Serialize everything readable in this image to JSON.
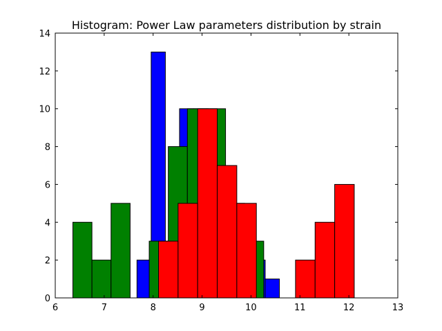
{
  "chart_data": {
    "type": "bar",
    "title": "Histogram: Power Law parameters distribution by strain",
    "xlabel": "",
    "ylabel": "",
    "xlim": [
      6,
      13
    ],
    "ylim": [
      0,
      14
    ],
    "x_ticks": [
      6,
      7,
      8,
      9,
      10,
      11,
      12,
      13
    ],
    "y_ticks": [
      0,
      2,
      4,
      6,
      8,
      10,
      12,
      14
    ],
    "grid": false,
    "legend": "none",
    "series": [
      {
        "color": "#0000ff",
        "bin_edges": [
          7.67,
          7.96,
          8.25,
          8.54,
          8.83,
          9.13,
          9.42,
          9.71,
          10.0,
          10.29,
          10.58
        ],
        "counts": [
          2,
          13,
          3,
          10,
          10,
          7,
          5,
          4,
          2,
          1
        ]
      },
      {
        "color": "#008000",
        "bin_edges": [
          6.36,
          6.75,
          7.14,
          7.53,
          7.92,
          8.31,
          8.7,
          9.09,
          9.48,
          9.87,
          10.26
        ],
        "counts": [
          4,
          2,
          5,
          0,
          3,
          8,
          10,
          10,
          5,
          3
        ]
      },
      {
        "color": "#ff0000",
        "bin_edges": [
          8.11,
          8.51,
          8.91,
          9.31,
          9.71,
          10.11,
          10.51,
          10.91,
          11.31,
          11.71,
          12.11
        ],
        "counts": [
          3,
          5,
          10,
          7,
          5,
          0,
          0,
          2,
          4,
          6
        ]
      }
    ]
  }
}
